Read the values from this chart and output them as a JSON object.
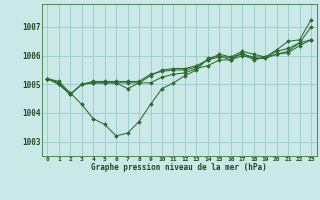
{
  "background_color": "#cbe8e8",
  "plot_bg_color": "#cbe8e8",
  "grid_color": "#9ecece",
  "line_color": "#2d6a2d",
  "xlabel": "Graphe pression niveau de la mer (hPa)",
  "ylim": [
    1002.5,
    1007.8
  ],
  "xlim": [
    -0.5,
    23.5
  ],
  "yticks": [
    1003,
    1004,
    1005,
    1006,
    1007
  ],
  "xticks": [
    0,
    1,
    2,
    3,
    4,
    5,
    6,
    7,
    8,
    9,
    10,
    11,
    12,
    13,
    14,
    15,
    16,
    17,
    18,
    19,
    20,
    21,
    22,
    23
  ],
  "series": [
    [
      1005.2,
      1005.1,
      1004.7,
      1004.3,
      1003.8,
      1003.6,
      1003.2,
      1003.3,
      1003.7,
      1004.3,
      1004.85,
      1005.05,
      1005.3,
      1005.5,
      1005.9,
      1006.0,
      1005.85,
      1006.1,
      1005.85,
      1005.95,
      1006.2,
      1006.5,
      1006.55,
      1007.25
    ],
    [
      1005.2,
      1005.05,
      1004.65,
      1005.0,
      1005.05,
      1005.05,
      1005.05,
      1004.85,
      1005.05,
      1005.3,
      1005.5,
      1005.55,
      1005.55,
      1005.65,
      1005.85,
      1006.05,
      1005.95,
      1006.15,
      1006.05,
      1005.95,
      1006.15,
      1006.25,
      1006.45,
      1006.55
    ],
    [
      1005.2,
      1005.0,
      1004.65,
      1005.0,
      1005.05,
      1005.05,
      1005.05,
      1005.05,
      1005.05,
      1005.05,
      1005.25,
      1005.35,
      1005.4,
      1005.55,
      1005.65,
      1005.85,
      1005.85,
      1006.0,
      1005.9,
      1005.9,
      1006.05,
      1006.1,
      1006.35,
      1006.55
    ],
    [
      1005.2,
      1005.0,
      1004.65,
      1005.0,
      1005.1,
      1005.1,
      1005.1,
      1005.1,
      1005.1,
      1005.35,
      1005.45,
      1005.5,
      1005.5,
      1005.6,
      1005.85,
      1005.95,
      1005.95,
      1006.05,
      1005.95,
      1005.95,
      1006.05,
      1006.15,
      1006.45,
      1007.0
    ]
  ]
}
